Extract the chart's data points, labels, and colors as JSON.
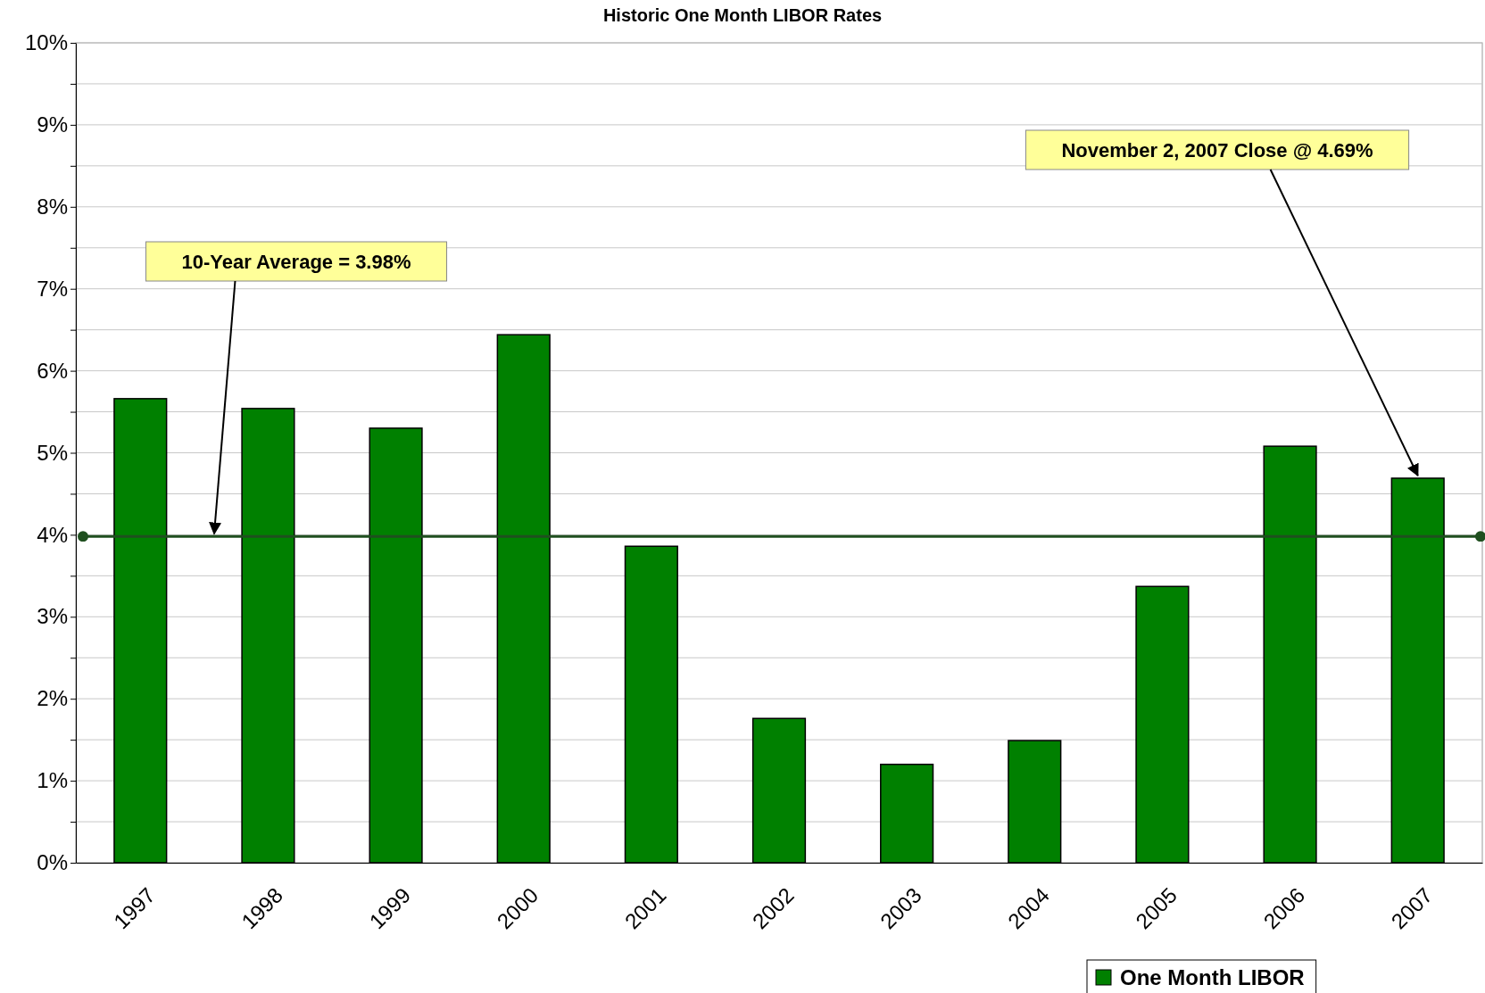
{
  "chart_data": {
    "type": "bar",
    "title": "Historic One Month LIBOR Rates",
    "categories": [
      "1997",
      "1998",
      "1999",
      "2000",
      "2001",
      "2002",
      "2003",
      "2004",
      "2005",
      "2006",
      "2007"
    ],
    "series": [
      {
        "name": "One Month  LIBOR",
        "color": "#008000",
        "values": [
          5.66,
          5.54,
          5.3,
          6.44,
          3.86,
          1.76,
          1.2,
          1.49,
          3.37,
          5.08,
          4.69
        ]
      }
    ],
    "ylim": [
      0,
      10
    ],
    "yticks": [
      {
        "value": 0,
        "label": "0%"
      },
      {
        "value": 0.5,
        "label": null
      },
      {
        "value": 1,
        "label": "1%"
      },
      {
        "value": 1.5,
        "label": null
      },
      {
        "value": 2,
        "label": "2%"
      },
      {
        "value": 2.5,
        "label": null
      },
      {
        "value": 3,
        "label": "3%"
      },
      {
        "value": 3.5,
        "label": null
      },
      {
        "value": 4,
        "label": "4%"
      },
      {
        "value": 4.5,
        "label": null
      },
      {
        "value": 5,
        "label": "5%"
      },
      {
        "value": 5.5,
        "label": null
      },
      {
        "value": 6,
        "label": "6%"
      },
      {
        "value": 6.5,
        "label": null
      },
      {
        "value": 7,
        "label": "7%"
      },
      {
        "value": 7.5,
        "label": null
      },
      {
        "value": 8,
        "label": "8%"
      },
      {
        "value": 8.5,
        "label": null
      },
      {
        "value": 9,
        "label": "9%"
      },
      {
        "value": 9.5,
        "label": null
      },
      {
        "value": 10,
        "label": "10%"
      }
    ],
    "grid": "y",
    "legend": "bottom",
    "ref_lines": [
      {
        "axis": "y",
        "value": 3.98,
        "label": "10-Year Average =  3.98%",
        "color": "#1f4f1f"
      }
    ],
    "annotations": [
      {
        "text": "November 2, 2007 Close @ 4.69%",
        "x": "2007",
        "y": 4.69
      }
    ]
  }
}
